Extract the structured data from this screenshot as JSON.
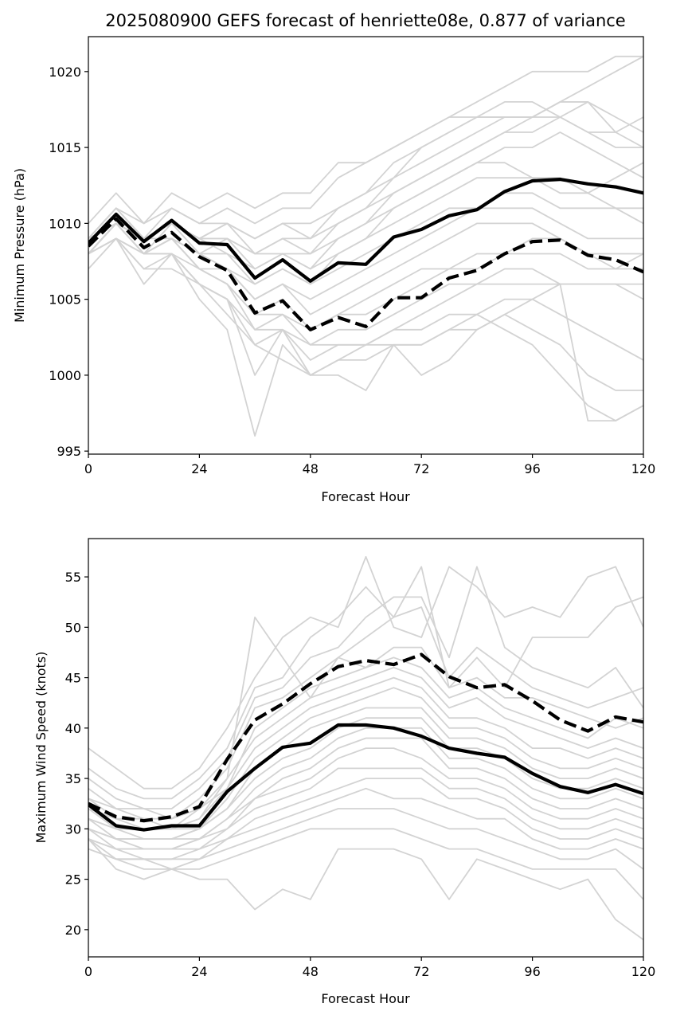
{
  "title": "2025080900 GEFS forecast of henriette08e, 0.877 of variance",
  "colors": {
    "ensemble": "#d3d3d3",
    "mean": "#000000",
    "axes": "#000000",
    "background": "#ffffff"
  },
  "chart_data": [
    {
      "type": "line",
      "xlabel": "Forecast Hour",
      "ylabel": "Minimum Pressure (hPa)",
      "xlim": [
        0,
        120
      ],
      "ylim": [
        994.8,
        1022.3
      ],
      "xticks": [
        "0",
        "24",
        "48",
        "72",
        "96",
        "120"
      ],
      "yticks": [
        "995",
        "1000",
        "1005",
        "1010",
        "1015",
        "1020"
      ],
      "grid": false,
      "x": [
        0,
        6,
        12,
        18,
        24,
        30,
        36,
        42,
        48,
        54,
        60,
        66,
        72,
        78,
        84,
        90,
        96,
        102,
        108,
        114,
        120
      ],
      "bold_series": [
        {
          "style": "solid",
          "values": [
            1008.7,
            1010.6,
            1008.8,
            1010.2,
            1008.7,
            1008.6,
            1006.4,
            1007.6,
            1006.2,
            1007.4,
            1007.3,
            1009.1,
            1009.6,
            1010.5,
            1010.9,
            1012.1,
            1012.8,
            1012.9,
            1012.6,
            1012.4,
            1012.0
          ]
        },
        {
          "style": "dashed",
          "values": [
            1008.5,
            1010.3,
            1008.4,
            1009.4,
            1007.8,
            1006.9,
            1004.1,
            1004.9,
            1003.0,
            1003.8,
            1003.2,
            1005.1,
            1005.1,
            1006.4,
            1006.9,
            1008.0,
            1008.8,
            1008.9,
            1007.9,
            1007.6,
            1006.8
          ]
        }
      ],
      "ensemble": [
        [
          1009,
          1011,
          1009,
          1011,
          1010,
          1011,
          1010,
          1011,
          1011,
          1013,
          1014,
          1015,
          1016,
          1017,
          1018,
          1019,
          1020,
          1020,
          1020,
          1021,
          1021
        ],
        [
          1010,
          1012,
          1010,
          1012,
          1011,
          1012,
          1011,
          1012,
          1012,
          1014,
          1014,
          1015,
          1016,
          1017,
          1017,
          1017,
          1017,
          1018,
          1019,
          1020,
          1021
        ],
        [
          1009,
          1011,
          1010,
          1011,
          1010,
          1010,
          1009,
          1010,
          1010,
          1011,
          1012,
          1013,
          1015,
          1016,
          1017,
          1017,
          1017,
          1017,
          1018,
          1016,
          1015
        ],
        [
          1009,
          1011,
          1009,
          1010,
          1009,
          1010,
          1009,
          1010,
          1009,
          1011,
          1012,
          1014,
          1015,
          1016,
          1017,
          1018,
          1018,
          1017,
          1016,
          1016,
          1017
        ],
        [
          1008,
          1010,
          1009,
          1010,
          1009,
          1009,
          1008,
          1009,
          1009,
          1010,
          1011,
          1013,
          1014,
          1015,
          1016,
          1017,
          1017,
          1018,
          1018,
          1017,
          1016
        ],
        [
          1008,
          1010,
          1008,
          1010,
          1009,
          1009,
          1008,
          1008,
          1008,
          1009,
          1010,
          1012,
          1013,
          1014,
          1015,
          1016,
          1016,
          1017,
          1016,
          1015,
          1015
        ],
        [
          1009,
          1011,
          1009,
          1010,
          1008,
          1009,
          1007,
          1008,
          1007,
          1009,
          1010,
          1011,
          1012,
          1013,
          1014,
          1015,
          1015,
          1016,
          1015,
          1014,
          1013
        ],
        [
          1008,
          1010,
          1009,
          1010,
          1009,
          1008,
          1007,
          1008,
          1007,
          1008,
          1009,
          1011,
          1012,
          1013,
          1014,
          1014,
          1013,
          1012,
          1012,
          1013,
          1014
        ],
        [
          1009,
          1010,
          1008,
          1009,
          1008,
          1008,
          1006,
          1007,
          1006,
          1008,
          1009,
          1010,
          1011,
          1012,
          1013,
          1013,
          1013,
          1013,
          1012,
          1011,
          1011
        ],
        [
          1008,
          1010,
          1008,
          1009,
          1008,
          1007,
          1006,
          1007,
          1006,
          1007,
          1008,
          1009,
          1010,
          1011,
          1011,
          1012,
          1012,
          1011,
          1011,
          1011,
          1010
        ],
        [
          1008,
          1009,
          1008,
          1009,
          1007,
          1007,
          1005,
          1006,
          1005,
          1006,
          1007,
          1008,
          1009,
          1010,
          1011,
          1011,
          1011,
          1010,
          1009,
          1009,
          1009
        ],
        [
          1008,
          1010,
          1008,
          1009,
          1008,
          1007,
          1005,
          1006,
          1004,
          1005,
          1006,
          1007,
          1008,
          1009,
          1010,
          1010,
          1010,
          1009,
          1008,
          1008,
          1008
        ],
        [
          1009,
          1010,
          1009,
          1009,
          1007,
          1006,
          1004,
          1005,
          1003,
          1004,
          1005,
          1006,
          1007,
          1007,
          1008,
          1008,
          1009,
          1009,
          1008,
          1007,
          1008
        ],
        [
          1008,
          1010,
          1008,
          1009,
          1007,
          1006,
          1004,
          1004,
          1003,
          1004,
          1004,
          1005,
          1006,
          1007,
          1007,
          1008,
          1008,
          1008,
          1007,
          1007,
          1007
        ],
        [
          1008,
          1009,
          1008,
          1008,
          1007,
          1006,
          1003,
          1004,
          1002,
          1003,
          1003,
          1004,
          1005,
          1006,
          1006,
          1007,
          1007,
          1006,
          1006,
          1006,
          1006
        ],
        [
          1007,
          1009,
          1008,
          1008,
          1006,
          1005,
          1003,
          1003,
          1002,
          1002,
          1002,
          1003,
          1004,
          1005,
          1006,
          1006,
          1006,
          1006,
          1006,
          1006,
          1005
        ],
        [
          1008,
          1009,
          1007,
          1008,
          1006,
          1005,
          1002,
          1003,
          1001,
          1002,
          1002,
          1002,
          1002,
          1003,
          1004,
          1005,
          1005,
          1004,
          1003,
          1002,
          1001
        ],
        [
          1008,
          1009,
          1007,
          1007,
          1006,
          1005,
          1000,
          1003,
          1000,
          1001,
          1002,
          1003,
          1003,
          1004,
          1004,
          1003,
          1002,
          1000,
          998,
          997,
          998
        ],
        [
          1008,
          1010,
          1008,
          1008,
          1006,
          1004,
          1002,
          1001,
          1000,
          1001,
          1001,
          1002,
          1002,
          1003,
          1003,
          1004,
          1003,
          1002,
          1000,
          999,
          999
        ],
        [
          1008,
          1009,
          1006,
          1008,
          1005,
          1003,
          996,
          1002,
          1000,
          1000,
          999,
          1002,
          1000,
          1001,
          1003,
          1004,
          1005,
          1006,
          997,
          997,
          998
        ],
        [
          1009,
          1011,
          1009,
          1010,
          1009,
          1010,
          1008,
          1009,
          1008,
          1010,
          1011,
          1012,
          1013,
          1014,
          1015,
          1016,
          1017,
          1018,
          1018,
          null,
          null
        ]
      ]
    },
    {
      "type": "line",
      "xlabel": "Forecast Hour",
      "ylabel": "Maximum Wind Speed (knots)",
      "xlim": [
        0,
        120
      ],
      "ylim": [
        17.3,
        58.8
      ],
      "xticks": [
        "0",
        "24",
        "48",
        "72",
        "96",
        "120"
      ],
      "yticks": [
        "20",
        "25",
        "30",
        "35",
        "40",
        "45",
        "50",
        "55"
      ],
      "grid": false,
      "x": [
        0,
        6,
        12,
        18,
        24,
        30,
        36,
        42,
        48,
        54,
        60,
        66,
        72,
        78,
        84,
        90,
        96,
        102,
        108,
        114,
        120
      ],
      "bold_series": [
        {
          "style": "solid",
          "values": [
            32.4,
            30.3,
            29.9,
            30.3,
            30.3,
            33.7,
            36.0,
            38.1,
            38.5,
            40.3,
            40.3,
            40.0,
            39.2,
            38.0,
            37.5,
            37.1,
            35.5,
            34.2,
            33.6,
            34.4,
            33.5
          ]
        },
        {
          "style": "dashed",
          "values": [
            32.5,
            31.2,
            30.8,
            31.2,
            32.2,
            36.9,
            40.8,
            42.4,
            44.4,
            46.1,
            46.7,
            46.3,
            47.3,
            45.1,
            44.0,
            44.3,
            42.7,
            40.8,
            39.7,
            41.1,
            40.6
          ]
        }
      ],
      "ensemble": [
        [
          38,
          36,
          34,
          34,
          36,
          40,
          45,
          49,
          51,
          50,
          57,
          50,
          49,
          56,
          54,
          51,
          52,
          51,
          55,
          56,
          50
        ],
        [
          36,
          34,
          33,
          33,
          35,
          38,
          44,
          45,
          49,
          51,
          54,
          51,
          56,
          44,
          47,
          44,
          49,
          49,
          49,
          52,
          53
        ],
        [
          35,
          33,
          32,
          32,
          34,
          37,
          43,
          44,
          47,
          48,
          51,
          53,
          53,
          47,
          56,
          48,
          46,
          45,
          44,
          46,
          42
        ],
        [
          34,
          32,
          32,
          31,
          33,
          36,
          42,
          43,
          45,
          47,
          49,
          51,
          52,
          45,
          48,
          46,
          44,
          43,
          42,
          43,
          44
        ],
        [
          33,
          32,
          31,
          31,
          32,
          35,
          51,
          47,
          43,
          47,
          46,
          48,
          48,
          44,
          45,
          43,
          43,
          42,
          41,
          40,
          41
        ],
        [
          33,
          31,
          31,
          30,
          32,
          34,
          40,
          42,
          44,
          45,
          46,
          47,
          46,
          43,
          44,
          42,
          41,
          40,
          39,
          41,
          40
        ],
        [
          32,
          31,
          30,
          30,
          31,
          35,
          39,
          41,
          43,
          44,
          45,
          46,
          45,
          42,
          43,
          41,
          40,
          39,
          38,
          39,
          38
        ],
        [
          32,
          30,
          30,
          30,
          31,
          34,
          38,
          40,
          42,
          43,
          44,
          45,
          44,
          41,
          41,
          40,
          38,
          38,
          37,
          38,
          37
        ],
        [
          31,
          30,
          30,
          30,
          30,
          33,
          37,
          39,
          41,
          42,
          43,
          44,
          43,
          40,
          40,
          39,
          37,
          36,
          36,
          37,
          36
        ],
        [
          31,
          30,
          29,
          29,
          30,
          32,
          36,
          38,
          40,
          41,
          42,
          42,
          42,
          39,
          39,
          38,
          36,
          35,
          35,
          36,
          35
        ],
        [
          31,
          29,
          29,
          29,
          30,
          32,
          35,
          37,
          38,
          40,
          41,
          41,
          41,
          38,
          38,
          37,
          35,
          34,
          34,
          35,
          34
        ],
        [
          30,
          29,
          29,
          29,
          29,
          31,
          34,
          36,
          37,
          39,
          40,
          40,
          40,
          37,
          37,
          36,
          34,
          33,
          33,
          34,
          33
        ],
        [
          30,
          29,
          28,
          28,
          29,
          31,
          33,
          35,
          36,
          38,
          39,
          39,
          39,
          36,
          36,
          35,
          33,
          32,
          32,
          33,
          32
        ],
        [
          30,
          28,
          28,
          28,
          29,
          30,
          33,
          34,
          35,
          37,
          38,
          38,
          37,
          35,
          35,
          34,
          32,
          31,
          31,
          32,
          31
        ],
        [
          29,
          28,
          28,
          28,
          28,
          30,
          32,
          33,
          34,
          36,
          36,
          36,
          36,
          34,
          34,
          33,
          31,
          30,
          30,
          31,
          30
        ],
        [
          29,
          28,
          27,
          27,
          28,
          29,
          31,
          32,
          33,
          34,
          35,
          35,
          35,
          33,
          33,
          32,
          30,
          29,
          29,
          30,
          29
        ],
        [
          29,
          27,
          27,
          27,
          27,
          29,
          30,
          31,
          32,
          33,
          34,
          33,
          33,
          32,
          31,
          31,
          29,
          28,
          28,
          29,
          28
        ],
        [
          28,
          27,
          27,
          26,
          27,
          28,
          29,
          30,
          31,
          32,
          32,
          32,
          31,
          30,
          30,
          29,
          28,
          27,
          27,
          28,
          26
        ],
        [
          28,
          27,
          26,
          26,
          26,
          27,
          28,
          29,
          30,
          30,
          30,
          30,
          29,
          28,
          28,
          27,
          26,
          26,
          26,
          26,
          23
        ],
        [
          29,
          26,
          25,
          26,
          25,
          25,
          22,
          24,
          23,
          28,
          28,
          28,
          27,
          23,
          27,
          26,
          25,
          24,
          25,
          21,
          19
        ]
      ]
    }
  ]
}
